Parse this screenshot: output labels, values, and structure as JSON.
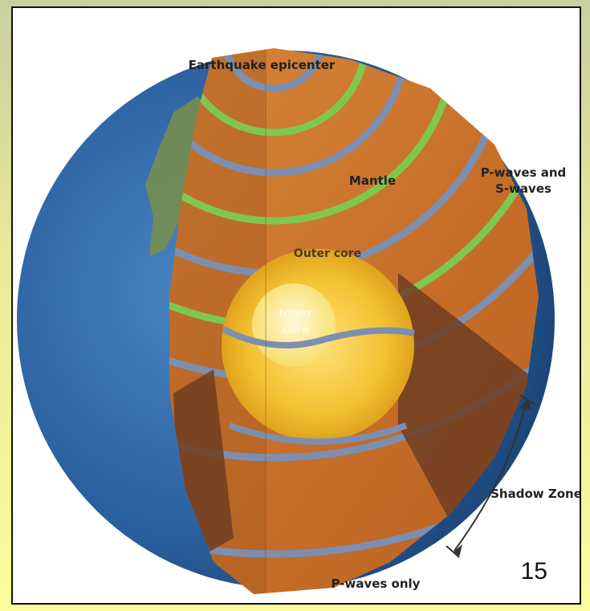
{
  "labels": {
    "epicenter": "Earthquake epicenter",
    "mantle": "Mantle",
    "p_and_s_line1": "P-waves and",
    "p_and_s_line2": "S-waves",
    "outer_core": "Outer core",
    "inner_core_line1": "Inner",
    "inner_core_line2": "core",
    "shadow_zone": "Shadow Zone",
    "p_waves_only": "P-waves only"
  },
  "page_number": "15",
  "colors": {
    "background_top": "#c9cfa0",
    "background_bottom": "#fbfc9c",
    "ocean": "#2a5f9e",
    "mantle": "#cc7a2e",
    "outer_core": "#f3c232",
    "inner_core": "#fff2a0",
    "s_wave_band": "#7ec850",
    "p_wave_band": "#7c8fb0",
    "shadow_zone": "#6e3d22"
  }
}
